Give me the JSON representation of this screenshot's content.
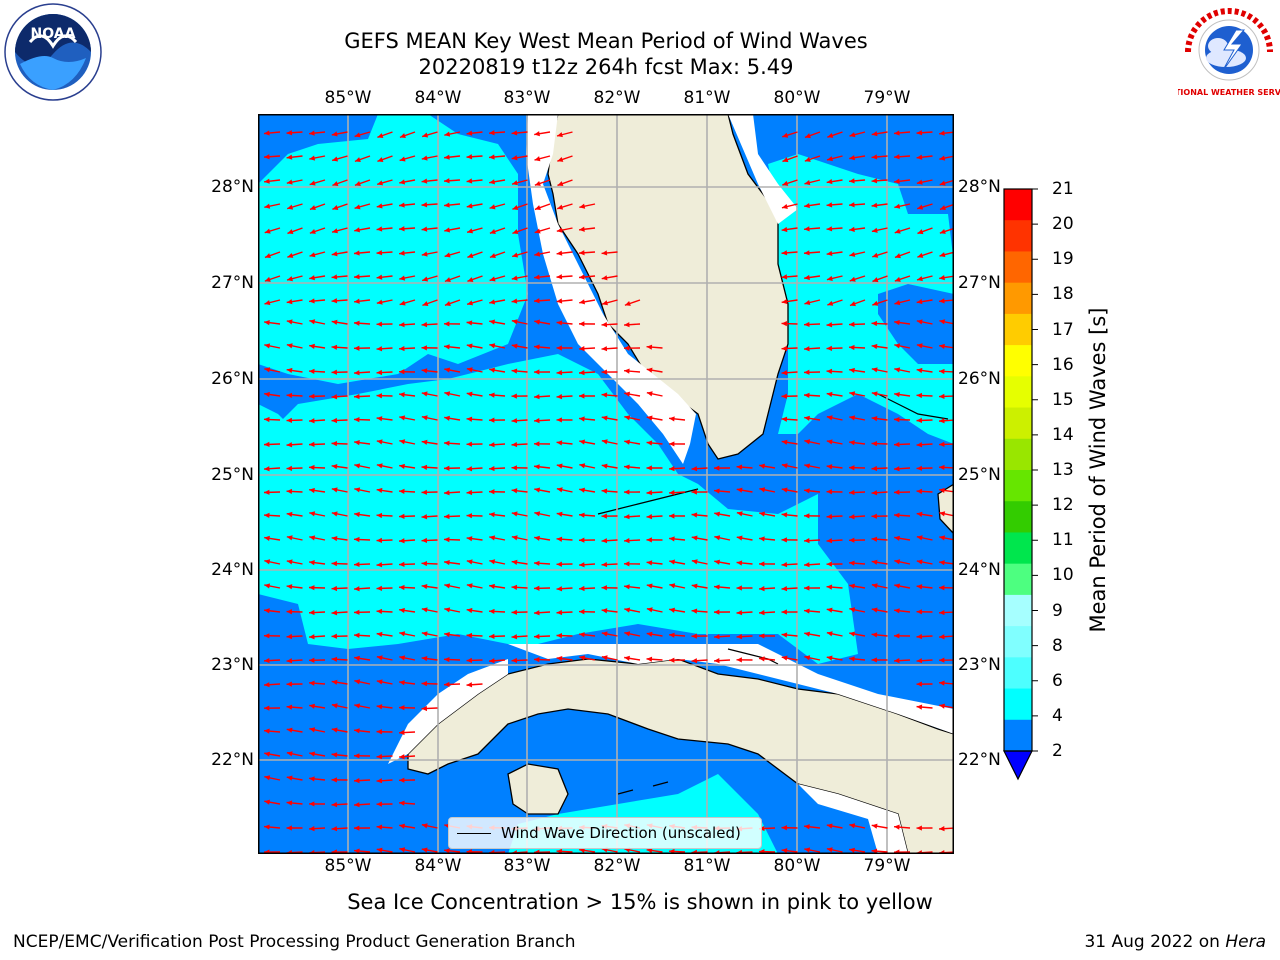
{
  "title_line1": "GEFS MEAN Key West Mean Period of Wind Waves",
  "title_line2": "20220819 t12z 264h fcst   Max: 5.49",
  "longitude_labels": [
    "85°W",
    "84°W",
    "83°W",
    "82°W",
    "81°W",
    "80°W",
    "79°W"
  ],
  "latitude_labels": [
    "28°N",
    "27°N",
    "26°N",
    "25°N",
    "24°N",
    "23°N",
    "22°N"
  ],
  "legend_label": "Wind Wave Direction (unscaled)",
  "colorbar": {
    "title": "Mean Period of Wind Waves [s]",
    "ticks": [
      "2",
      "4",
      "6",
      "8",
      "9",
      "10",
      "11",
      "12",
      "13",
      "14",
      "15",
      "16",
      "17",
      "18",
      "19",
      "20",
      "21"
    ],
    "colors": [
      "#0080ff",
      "#00ffff",
      "#4dffff",
      "#80ffff",
      "#a6ffff",
      "#4dff80",
      "#00e64d",
      "#33cc00",
      "#66e600",
      "#99e600",
      "#ccf000",
      "#e6ff00",
      "#ffff00",
      "#ffcc00",
      "#ff9900",
      "#ff6600",
      "#ff3300",
      "#ff0000"
    ],
    "extend_color": "#0000ff"
  },
  "sea_ice_note": "Sea Ice Concentration > 15% is shown in pink to yellow",
  "footer_left": "NCEP/EMC/Verification Post Processing Product Generation Branch",
  "footer_date": "31 Aug 2022 on ",
  "footer_host": "Hera",
  "logos": {
    "left_text": "NOAA",
    "right_text": "NATIONAL WEATHER SERVICE"
  },
  "colors": {
    "deep_water": "#0080ff",
    "shallow_period": "#00ffff",
    "land": "#efedd9",
    "arrow": "#ff0000",
    "grid": "#b0b0b0"
  }
}
